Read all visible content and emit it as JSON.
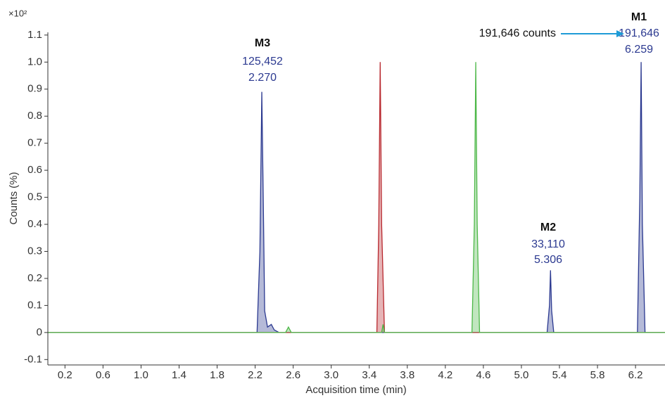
{
  "chart_data": {
    "type": "area",
    "y_multiplier": "×10²",
    "ylabel": "Counts (%)",
    "xlabel": "Acquisition time (min)",
    "xlim": [
      0.02,
      6.51
    ],
    "ylim": [
      -0.12,
      1.11
    ],
    "xticks": [
      0.2,
      0.6,
      {
        "value": 1,
        "label": "1.0"
      },
      1.4,
      1.8,
      2.2,
      2.6,
      {
        "value": 3,
        "label": "3.0"
      },
      3.4,
      3.8,
      4.2,
      4.6,
      {
        "value": 5,
        "label": "5.0"
      },
      5.4,
      5.8,
      6.2
    ],
    "yticks": [
      -0.1,
      0,
      0.1,
      0.2,
      0.3,
      0.4,
      0.5,
      0.6,
      0.7,
      0.8,
      0.9,
      {
        "value": 1,
        "label": "1.0"
      },
      1.1
    ],
    "series": [
      {
        "color": "#2b3990",
        "x": [
          0.02,
          2.22,
          2.25,
          2.27,
          2.285,
          2.3,
          2.33,
          2.37,
          2.4,
          2.45,
          5.27,
          5.295,
          5.306,
          5.318,
          5.34,
          6.22,
          6.245,
          6.259,
          6.272,
          6.3,
          6.51
        ],
        "values": [
          0,
          0,
          0.3,
          0.89,
          0.5,
          0.08,
          0.02,
          0.03,
          0.01,
          0,
          0,
          0.1,
          0.23,
          0.08,
          0,
          0,
          0.5,
          1.0,
          0.4,
          0,
          0
        ]
      },
      {
        "color": "#b8282e",
        "x": [
          0.02,
          3.48,
          3.5,
          3.515,
          3.53,
          3.56,
          6.51
        ],
        "values": [
          0,
          0,
          0.4,
          1.0,
          0.4,
          0,
          0
        ]
      },
      {
        "color": "#4db848",
        "x": [
          0.02,
          2.52,
          2.55,
          2.58,
          3.53,
          3.545,
          3.56,
          4.48,
          4.505,
          4.52,
          4.535,
          4.56,
          6.51
        ],
        "values": [
          0,
          0,
          0.02,
          0,
          0,
          0.03,
          0,
          0,
          0.4,
          1.0,
          0.4,
          0,
          0
        ]
      }
    ],
    "annotations": [
      {
        "label": "M3",
        "counts": "125,452",
        "time": "2.270"
      },
      {
        "label": "M2",
        "counts": "33,110",
        "time": "5.306"
      },
      {
        "label": "M1",
        "counts": "191,646",
        "time": "6.259"
      }
    ],
    "callout": "191,646 counts"
  }
}
